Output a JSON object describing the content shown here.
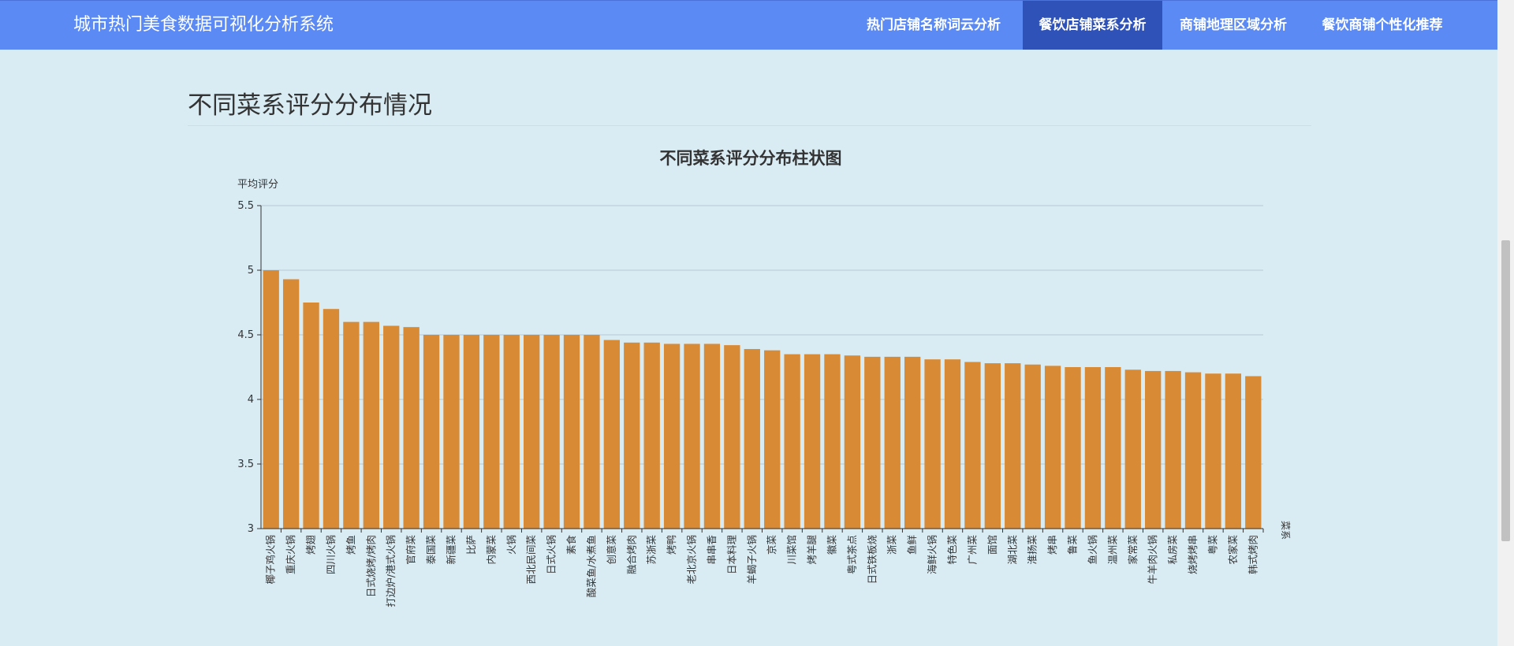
{
  "navbar": {
    "brand": "城市热门美食数据可视化分析系统",
    "items": [
      {
        "label": "热门店铺名称词云分析",
        "active": false
      },
      {
        "label": "餐饮店铺菜系分析",
        "active": true
      },
      {
        "label": "商铺地理区域分析",
        "active": false
      },
      {
        "label": "餐饮商铺个性化推荐",
        "active": false
      }
    ]
  },
  "section": {
    "title": "不同菜系评分分布情况"
  },
  "colors": {
    "navbar": "#5b8af5",
    "nav_active": "#2f52b8",
    "page_bg": "#d9ecf4",
    "bar": "#d98a35"
  },
  "chart_data": {
    "type": "bar",
    "title": "不同菜系评分分布柱状图",
    "ylabel": "平均评分",
    "xlabel": "菜系",
    "ylim": [
      3,
      5.5
    ],
    "yticks": [
      "3",
      "3.5",
      "4",
      "4.5",
      "5",
      "5.5"
    ],
    "grid": true,
    "categories": [
      "椰子鸡火锅",
      "重庆火锅",
      "烤翅",
      "四川火锅",
      "烤鱼",
      "日式烧烤/烤肉",
      "打边炉/港式火锅",
      "官府菜",
      "泰国菜",
      "新疆菜",
      "比萨",
      "内蒙菜",
      "火锅",
      "西北民间菜",
      "日式火锅",
      "素食",
      "酸菜鱼/水煮鱼",
      "创意菜",
      "融合烤肉",
      "苏浙菜",
      "烤鸭",
      "老北京火锅",
      "串串香",
      "日本料理",
      "羊蝎子火锅",
      "京菜",
      "川菜馆",
      "烤羊腿",
      "徽菜",
      "粤式茶点",
      "日式铁板烧",
      "浙菜",
      "鱼鲜",
      "海鲜火锅",
      "特色菜",
      "广州菜",
      "面馆",
      "湖北菜",
      "淮扬菜",
      "烤串",
      "鲁菜",
      "鱼火锅",
      "温州菜",
      "家常菜",
      "牛羊肉火锅",
      "私房菜",
      "烧烤烤串",
      "粤菜",
      "农家菜",
      "韩式烤肉"
    ],
    "values": [
      5.0,
      4.93,
      4.75,
      4.7,
      4.6,
      4.6,
      4.57,
      4.56,
      4.5,
      4.5,
      4.5,
      4.5,
      4.5,
      4.5,
      4.5,
      4.5,
      4.5,
      4.46,
      4.44,
      4.44,
      4.43,
      4.43,
      4.43,
      4.42,
      4.39,
      4.38,
      4.35,
      4.35,
      4.35,
      4.34,
      4.33,
      4.33,
      4.33,
      4.31,
      4.31,
      4.29,
      4.28,
      4.28,
      4.27,
      4.26,
      4.25,
      4.25,
      4.25,
      4.23,
      4.22,
      4.22,
      4.21,
      4.2,
      4.2,
      4.18
    ]
  }
}
